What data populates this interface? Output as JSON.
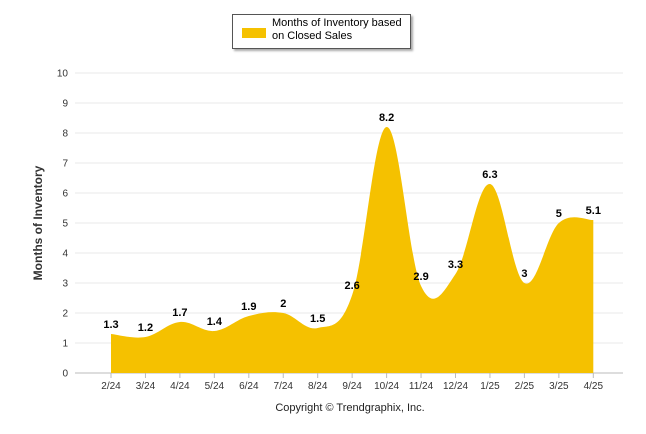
{
  "chart_data": {
    "type": "area",
    "categories": [
      "2/24",
      "3/24",
      "4/24",
      "5/24",
      "6/24",
      "7/24",
      "8/24",
      "9/24",
      "10/24",
      "11/24",
      "12/24",
      "1/25",
      "2/25",
      "3/25",
      "4/25"
    ],
    "series": [
      {
        "name": "Months of Inventory based on Closed Sales",
        "values": [
          1.3,
          1.2,
          1.7,
          1.4,
          1.9,
          2,
          1.5,
          2.6,
          8.2,
          2.9,
          3.3,
          6.3,
          3,
          5,
          5.1
        ],
        "labels": [
          "1.3",
          "1.2",
          "1.7",
          "1.4",
          "1.9",
          "2",
          "1.5",
          "2.6",
          "8.2",
          "2.9",
          "3.3",
          "6.3",
          "3",
          "5",
          "5.1"
        ]
      }
    ],
    "ylabel": "Months of Inventory",
    "ylim": [
      0,
      10
    ],
    "yticks": [
      "0",
      "1",
      "2",
      "3",
      "4",
      "5",
      "6",
      "7",
      "8",
      "9",
      "10"
    ],
    "grid": true,
    "legend": "top-center",
    "fill_color": "#f5c100"
  },
  "legend": {
    "label": "Months of Inventory based on Closed Sales"
  },
  "footer": {
    "copyright": "Copyright © Trendgraphix, Inc."
  }
}
